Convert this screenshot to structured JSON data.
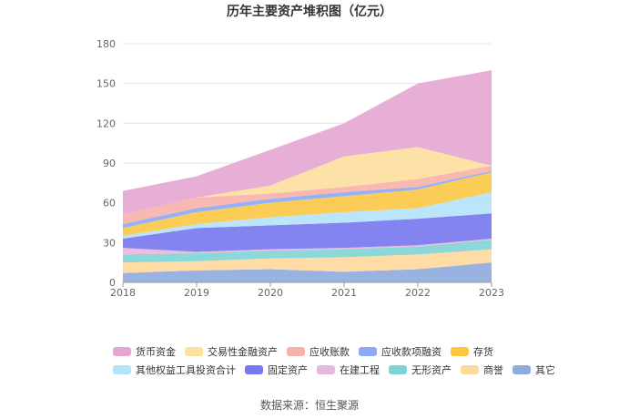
{
  "chart_data": {
    "type": "area",
    "stacked": true,
    "title": "历年主要资产堆积图（亿元）",
    "source": "数据来源：恒生聚源",
    "categories": [
      "2018",
      "2019",
      "2020",
      "2021",
      "2022",
      "2023"
    ],
    "ylim": [
      0,
      180
    ],
    "yticks": [
      "0",
      "30",
      "60",
      "90",
      "120",
      "150",
      "180"
    ],
    "grid": true,
    "legend_position": "bottom",
    "series": [
      {
        "name": "其它",
        "color": "#8faadc",
        "values": [
          7,
          9,
          10,
          8,
          10,
          15
        ]
      },
      {
        "name": "商誉",
        "color": "#ffd89b",
        "values": [
          8,
          7,
          8,
          11,
          11,
          10
        ]
      },
      {
        "name": "无形资产",
        "color": "#7fd3d3",
        "values": [
          6,
          6,
          6,
          6,
          6,
          7
        ]
      },
      {
        "name": "在建工程",
        "color": "#e8b7dd",
        "values": [
          5,
          1,
          1,
          1,
          1,
          1
        ]
      },
      {
        "name": "固定资产",
        "color": "#7777ee",
        "values": [
          7,
          18,
          18,
          19,
          20,
          19
        ]
      },
      {
        "name": "其他权益工具投资合计",
        "color": "#b3e2fa",
        "values": [
          2,
          3,
          6,
          8,
          8,
          16
        ]
      },
      {
        "name": "存货",
        "color": "#fcc844",
        "values": [
          6,
          9,
          11,
          12,
          14,
          15
        ]
      },
      {
        "name": "应收款项融资",
        "color": "#8aaaf5",
        "values": [
          3,
          3,
          3,
          3,
          2,
          1
        ]
      },
      {
        "name": "应收账款",
        "color": "#f8b0aa",
        "values": [
          7,
          8,
          4,
          4,
          6,
          4
        ]
      },
      {
        "name": "交易性金融资产",
        "color": "#fddf9e",
        "values": [
          0,
          0,
          6,
          23,
          24,
          0
        ]
      },
      {
        "name": "货币资金",
        "color": "#e5a6d1",
        "values": [
          18,
          16,
          27,
          25,
          48,
          72
        ]
      }
    ],
    "legend_order": [
      "货币资金",
      "交易性金融资产",
      "应收账款",
      "应收款项融资",
      "存货",
      "其他权益工具投资合计",
      "固定资产",
      "在建工程",
      "无形资产",
      "商誉",
      "其它"
    ]
  }
}
